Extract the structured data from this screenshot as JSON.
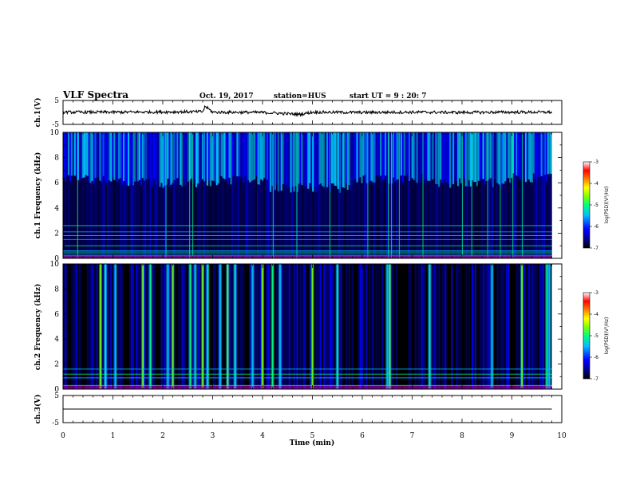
{
  "header": {
    "title": "VLF Spectra",
    "date": "Oct. 19, 2017",
    "station": "station=HUS",
    "start": "start UT =  9 : 20: 7"
  },
  "colors": {
    "background": "#000000",
    "trace": "#000000",
    "colormap": [
      "#000000",
      "#00008b",
      "#0000ff",
      "#00bfff",
      "#00ff7f",
      "#7fff00",
      "#ffff00",
      "#ff7f00",
      "#ff0000",
      "#ffffff"
    ]
  },
  "chart_data": [
    {
      "type": "line",
      "name": "ch1-waveform",
      "ylabel": "ch.1(V)",
      "ylim": [
        -5,
        5
      ],
      "yticks": [
        "5",
        "-5"
      ],
      "xlim": [
        0,
        10
      ],
      "x": [
        0,
        1,
        2,
        2.8,
        2.85,
        3,
        4,
        4.75,
        5,
        6,
        7,
        8,
        9,
        9.8
      ],
      "y": [
        0.1,
        0.1,
        0.2,
        0.3,
        2.6,
        0.1,
        0.0,
        -0.8,
        0.1,
        0.0,
        0.1,
        0.0,
        0.1,
        0.1
      ]
    },
    {
      "type": "heatmap",
      "name": "ch1-spectrogram",
      "ylabel": "ch.1 Frequency (kHz)",
      "ylim": [
        0,
        10
      ],
      "yticks": [
        "0",
        "2",
        "4",
        "6",
        "8",
        "10"
      ],
      "xlim": [
        0,
        10
      ],
      "colorbar": {
        "label": "log(PSD)(V²/Hz)",
        "range": [
          -7,
          -3
        ],
        "ticks": [
          "-3",
          "-4",
          "-5",
          "-6",
          "-7"
        ]
      },
      "lines_khz": [
        0.2,
        0.35,
        0.5,
        0.6,
        1.0,
        1.5,
        1.8,
        2.1,
        2.6
      ],
      "active_cutoff_khz": [
        {
          "x": [
            0.0,
            1.0
          ],
          "value": 6.3
        },
        {
          "x": [
            1.0,
            3.0
          ],
          "value": 6.0
        },
        {
          "x": [
            3.0,
            4.1
          ],
          "value": 6.2
        },
        {
          "x": [
            4.1,
            5.8
          ],
          "value": 5.6
        },
        {
          "x": [
            5.8,
            7.2
          ],
          "value": 6.3
        },
        {
          "x": [
            7.2,
            9.0
          ],
          "value": 6.0
        },
        {
          "x": [
            9.0,
            9.8
          ],
          "value": 6.4
        }
      ]
    },
    {
      "type": "heatmap",
      "name": "ch2-spectrogram",
      "ylabel": "ch.2 Frequency (kHz)",
      "ylim": [
        0,
        10
      ],
      "yticks": [
        "0",
        "2",
        "4",
        "6",
        "8",
        "10"
      ],
      "xlim": [
        0,
        10
      ],
      "colorbar": {
        "label": "log(PSD)(V²/Hz)",
        "range": [
          -7,
          -3
        ],
        "ticks": [
          "-3",
          "-4",
          "-5",
          "-6",
          "-7"
        ]
      },
      "lines_khz": [
        0.3,
        0.9,
        1.2,
        1.6
      ],
      "bright_bursts_min": [
        0.75,
        0.85,
        1.05,
        1.6,
        1.75,
        2.1,
        2.2,
        2.55,
        2.65,
        2.8,
        2.9,
        3.15,
        3.3,
        3.45,
        3.8,
        4.0,
        4.2,
        4.35,
        5.0,
        5.5,
        6.5,
        6.55,
        7.35,
        8.6,
        9.2,
        9.7,
        9.75
      ]
    },
    {
      "type": "line",
      "name": "ch3-waveform",
      "ylabel": "ch.3(V)",
      "ylim": [
        -5,
        5
      ],
      "yticks": [
        "5",
        "-5"
      ],
      "xlim": [
        0,
        10
      ],
      "x": [
        0,
        9.8
      ],
      "y": [
        0,
        0
      ]
    }
  ],
  "xaxis": {
    "label": "Time (min)",
    "ticks": [
      "0",
      "1",
      "2",
      "3",
      "4",
      "5",
      "6",
      "7",
      "8",
      "9",
      "10"
    ]
  }
}
